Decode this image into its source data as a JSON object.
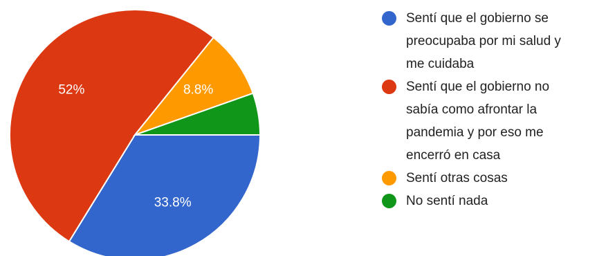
{
  "chart_data": {
    "type": "pie",
    "categories": [
      "Sentí que el gobierno se preocupaba por mi salud y me cuidaba",
      "Sentí que el gobierno no sabía como afrontar la pandemia y por eso me encerró en casa",
      "Sentí otras cosas",
      "No sentí nada"
    ],
    "values": [
      33.8,
      52,
      8.8,
      5.4
    ],
    "data_labels": [
      "33.8%",
      "52%",
      "8.8%",
      ""
    ],
    "colors": [
      "#3366cc",
      "#dc3912",
      "#ff9900",
      "#109618"
    ],
    "legend_position": "right"
  },
  "legend": {
    "items": [
      {
        "lines": [
          "Sentí que el gobierno se",
          "preocupaba por mi salud y",
          "me cuidaba"
        ]
      },
      {
        "lines": [
          "Sentí que el gobierno no",
          "sabía como afrontar la",
          "pandemia y por eso me",
          "encerró en casa"
        ]
      },
      {
        "lines": [
          "Sentí otras cosas"
        ]
      },
      {
        "lines": [
          "No sentí nada"
        ]
      }
    ]
  }
}
